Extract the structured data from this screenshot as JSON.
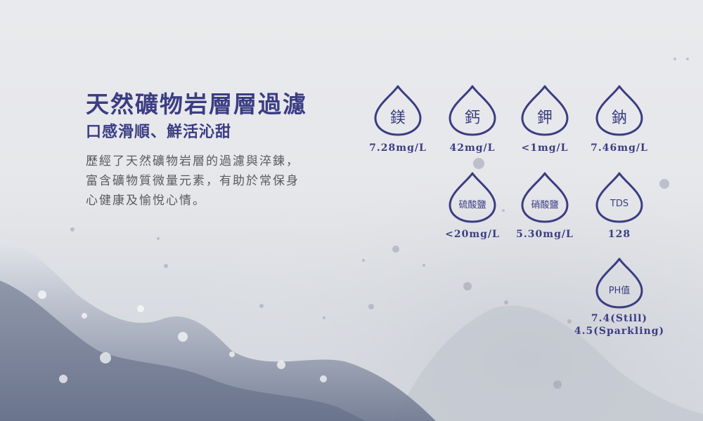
{
  "intro": {
    "headline": "天然礦物岩層層過濾",
    "subheadline": "口感滑順、鮮活沁甜",
    "body_lines": [
      "歷經了天然礦物岩層的過濾與淬鍊，",
      "富含礦物質微量元素，有助於常保身",
      "心健康及愉悅心情。"
    ]
  },
  "minerals": [
    {
      "label": "鎂",
      "value": "7.28mg/L"
    },
    {
      "label": "鈣",
      "value": "42mg/L"
    },
    {
      "label": "鉀",
      "value": "<1mg/L"
    },
    {
      "label": "鈉",
      "value": "7.46mg/L"
    },
    {
      "label": "硫酸鹽",
      "value": "<20mg/L"
    },
    {
      "label": "硝酸鹽",
      "value": "5.30mg/L"
    },
    {
      "label": "TDS",
      "value": "128"
    },
    {
      "label": "PH值",
      "value_lines": [
        "7.4(Still)",
        "4.5(Sparkling)"
      ]
    }
  ],
  "colors": {
    "accent": "#3b3d83",
    "body_text": "#5a5a5e",
    "background": "#e8e9ec"
  },
  "icons": {
    "drop": "water-drop-outline-icon"
  }
}
